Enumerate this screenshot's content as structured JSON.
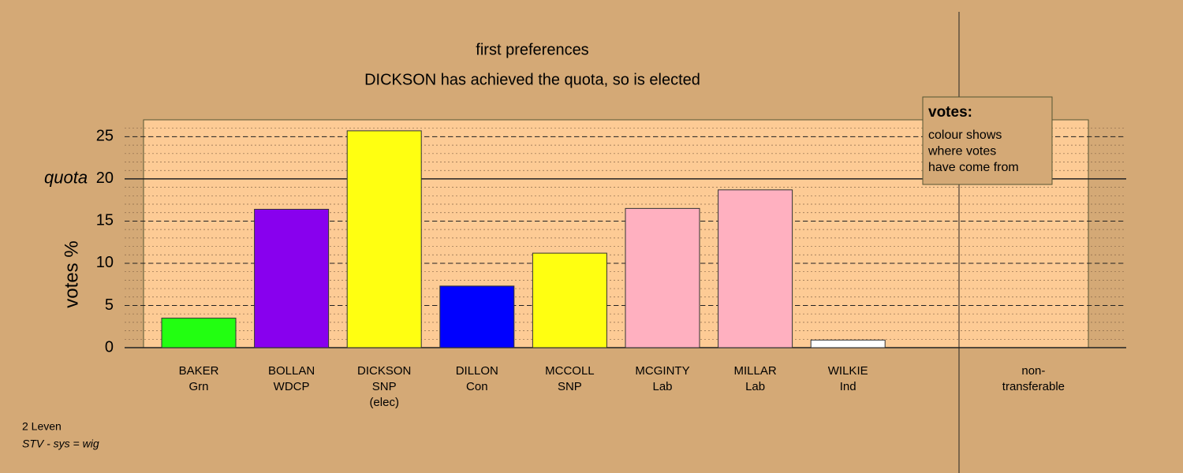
{
  "chart_data": {
    "type": "bar",
    "title": "first preferences",
    "subtitle": "DICKSON has achieved the quota, so is elected",
    "y_label": "votes %",
    "categories": [
      "BAKER",
      "BOLLAN",
      "DICKSON",
      "DILLON",
      "MCCOLL",
      "MCGINTY",
      "MILLAR",
      "WILKIE",
      null,
      "non-"
    ],
    "parties": [
      "Grn",
      "WDCP",
      "SNP",
      "Con",
      "SNP",
      "Lab",
      "Lab",
      "Ind",
      null,
      "transferable"
    ],
    "notes": [
      null,
      null,
      "(elec)",
      null,
      null,
      null,
      null,
      null,
      null,
      null
    ],
    "values": [
      3.5,
      16.4,
      25.7,
      7.3,
      11.2,
      16.5,
      18.7,
      0.9,
      null,
      null
    ],
    "colors": [
      "#22ff11",
      "#8800ee",
      "#ffff11",
      "#0000ff",
      "#ffff11",
      "#ffb0c0",
      "#ffb0c0",
      "#ffffff",
      null,
      null
    ],
    "ylim": [
      0,
      27
    ],
    "yticks": [
      0,
      5,
      10,
      15,
      20,
      25
    ],
    "minor_grid_step": 1,
    "quota": 20,
    "quota_label": "quota",
    "legend": {
      "title": "votes:",
      "lines": [
        "colour shows",
        "where votes",
        "have come from"
      ]
    },
    "footer": [
      "2 Leven",
      "STV - sys = wig"
    ]
  }
}
